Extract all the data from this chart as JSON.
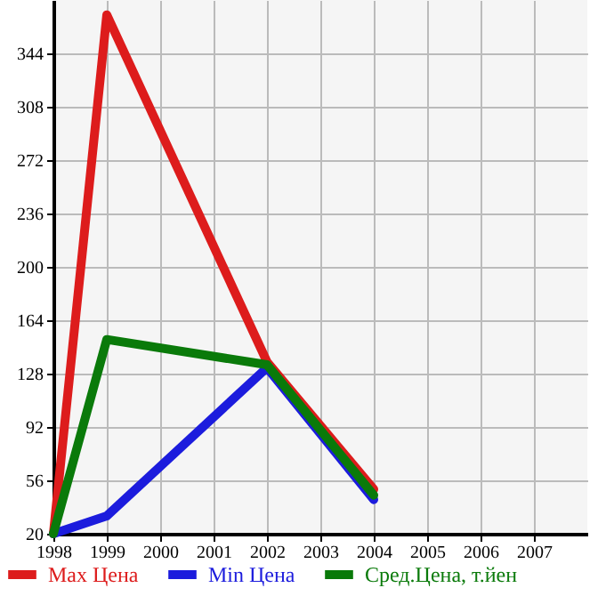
{
  "chart_data": {
    "type": "line",
    "x": [
      1998,
      1999,
      2002,
      2004
    ],
    "series": [
      {
        "name": "Max Цена",
        "color": "#dd1c1c",
        "values": [
          20,
          370,
          136,
          50
        ]
      },
      {
        "name": "Min Цена",
        "color": "#1c1cdd",
        "values": [
          20,
          32,
          132,
          43
        ]
      },
      {
        "name": "Сред.Цена, т.йен",
        "color": "#0a7a0a",
        "values": [
          20,
          151,
          134,
          46
        ]
      }
    ],
    "xlim": [
      1998,
      2008
    ],
    "xticks": [
      1998,
      1999,
      2000,
      2001,
      2002,
      2003,
      2004,
      2005,
      2006,
      2007
    ],
    "ylim": [
      20,
      380
    ],
    "yticks": [
      20,
      56,
      92,
      128,
      164,
      200,
      236,
      272,
      308,
      344
    ],
    "grid": true,
    "legend": "bottom",
    "marker": "none",
    "line_style": "solid"
  }
}
